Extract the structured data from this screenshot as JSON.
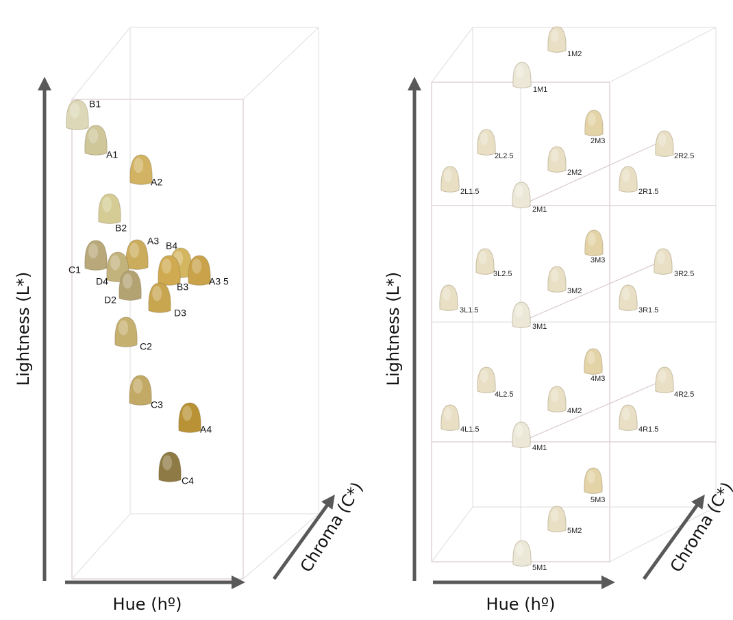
{
  "left_panel": {
    "shades": [
      "B1",
      "A1",
      "A2",
      "B2",
      "A3",
      "B4",
      "C1",
      "D4",
      "B3",
      "A3 5",
      "D2",
      "D3",
      "C2",
      "C3",
      "A4",
      "C4"
    ],
    "axes": {
      "lightness": "Lightness (L*)",
      "hue": "Hue (hº)",
      "chroma": "Chroma (C*)"
    }
  },
  "right_panel": {
    "shades": [
      "1M2",
      "1M1",
      "2M3",
      "2L2.5",
      "2R2.5",
      "2M2",
      "2L1.5",
      "2R1.5",
      "2M1",
      "3M3",
      "3L2.5",
      "3R2.5",
      "3M2",
      "3L1.5",
      "3R1.5",
      "3M1",
      "4M3",
      "4L2.5",
      "4R2.5",
      "4M2",
      "4L1.5",
      "4R1.5",
      "4M1",
      "5M3",
      "5M2",
      "5M1"
    ],
    "axes": {
      "lightness": "Lightness (L*)",
      "hue": "Hue (hº)",
      "chroma": "Chroma (C*)"
    }
  }
}
